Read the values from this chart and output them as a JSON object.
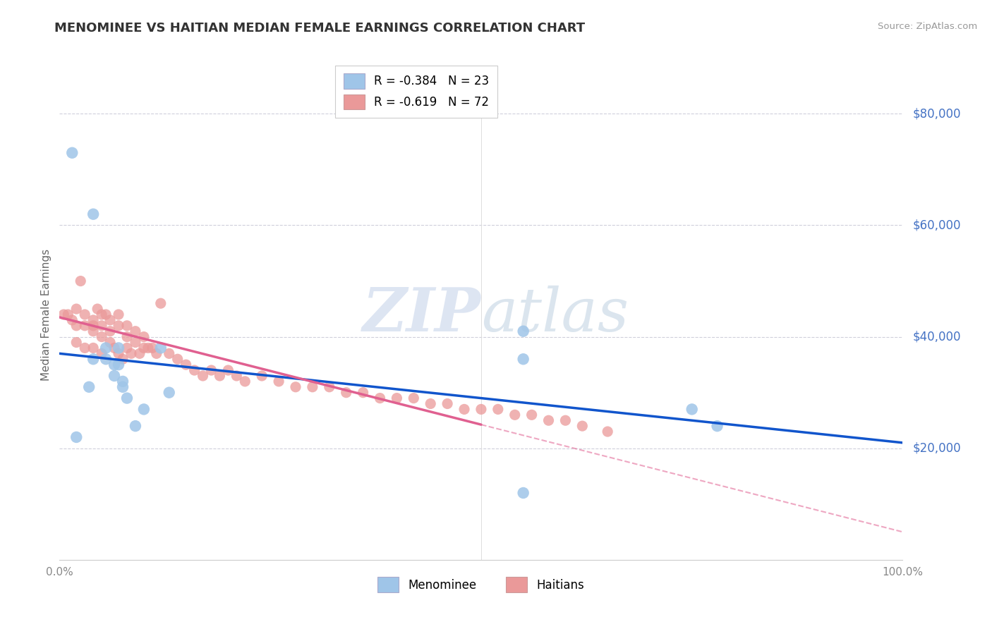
{
  "title": "MENOMINEE VS HAITIAN MEDIAN FEMALE EARNINGS CORRELATION CHART",
  "source": "Source: ZipAtlas.com",
  "ylabel": "Median Female Earnings",
  "y_ticks": [
    20000,
    40000,
    60000,
    80000
  ],
  "y_tick_labels": [
    "$20,000",
    "$40,000",
    "$60,000",
    "$80,000"
  ],
  "legend_blue_r": "R = -0.384",
  "legend_blue_n": "N = 23",
  "legend_pink_r": "R = -0.619",
  "legend_pink_n": "N = 72",
  "legend_blue_label": "Menominee",
  "legend_pink_label": "Haitians",
  "blue_color": "#9fc5e8",
  "pink_color": "#ea9999",
  "trend_blue_color": "#1155cc",
  "trend_pink_color": "#e06090",
  "title_color": "#333333",
  "source_color": "#999999",
  "right_label_color": "#4472c4",
  "ylabel_color": "#666666",
  "axis_label_color": "#888888",
  "grid_color": "#bbbbcc",
  "blue_x": [
    0.015,
    0.02,
    0.035,
    0.04,
    0.04,
    0.055,
    0.055,
    0.065,
    0.065,
    0.07,
    0.07,
    0.075,
    0.075,
    0.08,
    0.09,
    0.1,
    0.12,
    0.13,
    0.55,
    0.75,
    0.78,
    0.55,
    0.55
  ],
  "blue_y": [
    73000,
    22000,
    31000,
    62000,
    36000,
    36000,
    38000,
    35000,
    33000,
    38000,
    35000,
    32000,
    31000,
    29000,
    24000,
    27000,
    38000,
    30000,
    41000,
    27000,
    24000,
    36000,
    12000
  ],
  "pink_x": [
    0.005,
    0.01,
    0.015,
    0.02,
    0.02,
    0.02,
    0.025,
    0.03,
    0.03,
    0.03,
    0.04,
    0.04,
    0.04,
    0.04,
    0.045,
    0.05,
    0.05,
    0.05,
    0.05,
    0.055,
    0.06,
    0.06,
    0.06,
    0.065,
    0.07,
    0.07,
    0.07,
    0.075,
    0.08,
    0.08,
    0.08,
    0.085,
    0.09,
    0.09,
    0.095,
    0.1,
    0.1,
    0.105,
    0.11,
    0.115,
    0.12,
    0.13,
    0.14,
    0.15,
    0.16,
    0.17,
    0.18,
    0.19,
    0.2,
    0.21,
    0.22,
    0.24,
    0.26,
    0.28,
    0.3,
    0.32,
    0.34,
    0.36,
    0.38,
    0.4,
    0.42,
    0.44,
    0.46,
    0.48,
    0.5,
    0.52,
    0.54,
    0.56,
    0.58,
    0.6,
    0.62,
    0.65
  ],
  "pink_y": [
    44000,
    44000,
    43000,
    45000,
    42000,
    39000,
    50000,
    44000,
    42000,
    38000,
    43000,
    42000,
    41000,
    38000,
    45000,
    44000,
    42000,
    40000,
    37000,
    44000,
    43000,
    41000,
    39000,
    38000,
    44000,
    42000,
    37000,
    36000,
    42000,
    40000,
    38000,
    37000,
    41000,
    39000,
    37000,
    40000,
    38000,
    38000,
    38000,
    37000,
    46000,
    37000,
    36000,
    35000,
    34000,
    33000,
    34000,
    33000,
    34000,
    33000,
    32000,
    33000,
    32000,
    31000,
    31000,
    31000,
    30000,
    30000,
    29000,
    29000,
    29000,
    28000,
    28000,
    27000,
    27000,
    27000,
    26000,
    26000,
    25000,
    25000,
    24000,
    23000
  ],
  "ylim_min": 0,
  "ylim_max": 88000,
  "xlim_min": 0.0,
  "xlim_max": 1.0,
  "blue_trend_x0": 0.0,
  "blue_trend_x1": 1.0,
  "blue_trend_y0": 37000,
  "blue_trend_y1": 21000,
  "pink_trend_x0": 0.0,
  "pink_trend_solid_x1": 0.5,
  "pink_trend_x1": 1.0,
  "pink_trend_y0": 43500,
  "pink_trend_y1": 5000
}
